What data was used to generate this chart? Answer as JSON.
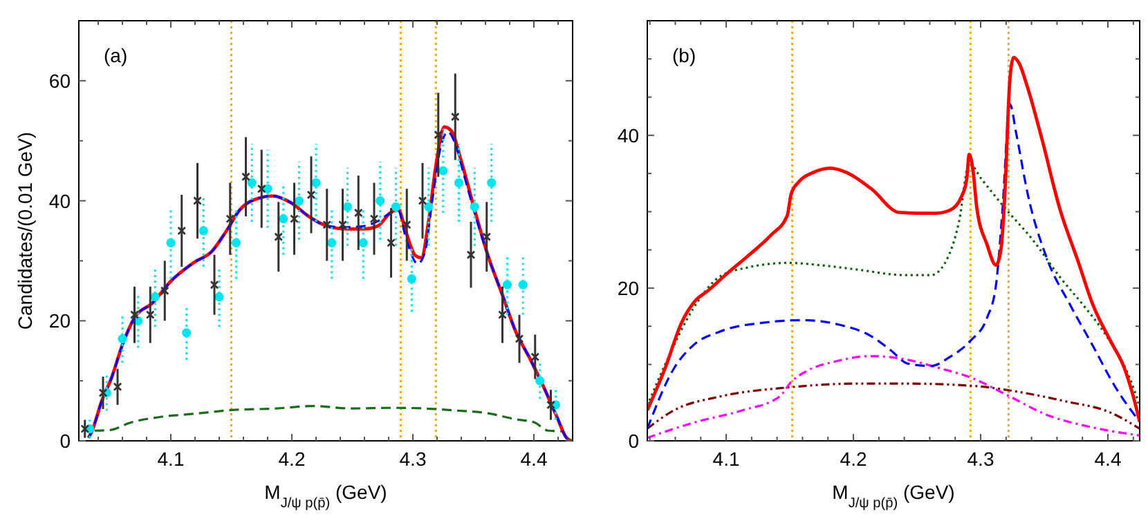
{
  "chart_data": [
    {
      "type": "line",
      "ylabel": "Candidates/(0.01 GeV)",
      "xlabel": "M$_{J/ψ p(p̄)}$ (GeV)",
      "annotations": [
        "(a)"
      ],
      "xlim": [
        4.024,
        4.432
      ],
      "ylim": [
        0,
        70
      ],
      "xticks": [
        {
          "value": 4.04,
          "label": null
        },
        {
          "value": 4.06,
          "label": null
        },
        {
          "value": 4.08,
          "label": null
        },
        4.1,
        {
          "value": 4.12,
          "label": null
        },
        {
          "value": 4.14,
          "label": null
        },
        {
          "value": 4.16,
          "label": null
        },
        {
          "value": 4.18,
          "label": null
        },
        4.2,
        {
          "value": 4.22,
          "label": null
        },
        {
          "value": 4.24,
          "label": null
        },
        {
          "value": 4.26,
          "label": null
        },
        {
          "value": 4.28,
          "label": null
        },
        4.3,
        {
          "value": 4.32,
          "label": null
        },
        {
          "value": 4.34,
          "label": null
        },
        {
          "value": 4.36,
          "label": null
        },
        {
          "value": 4.38,
          "label": null
        },
        4.4,
        {
          "value": 4.42,
          "label": null
        }
      ],
      "yticks": [
        0,
        {
          "value": 10,
          "label": null
        },
        20,
        {
          "value": 30,
          "label": null
        },
        40,
        {
          "value": 50,
          "label": null
        },
        60
      ],
      "grid": false,
      "ref_lines": [
        {
          "axis": "x",
          "value": 4.15,
          "color": "#ffa500",
          "line_style": "dotted"
        },
        {
          "axis": "x",
          "value": 4.29,
          "color": "#ffa500",
          "line_style": "dotted"
        },
        {
          "axis": "x",
          "value": 4.319,
          "color": "#ffa500",
          "line_style": "dotted"
        }
      ],
      "series": [
        {
          "color": "#1a6b1a",
          "line_style": "dashed",
          "x": [
            4.037,
            4.05,
            4.066,
            4.092,
            4.119,
            4.149,
            4.187,
            4.218,
            4.248,
            4.286,
            4.309,
            4.332,
            4.362,
            4.385,
            4.4,
            4.412,
            4.423
          ],
          "values": [
            1.7,
            1.8,
            3,
            4,
            4.5,
            5.1,
            5.4,
            5.8,
            5.4,
            5.5,
            5.4,
            5.1,
            4.6,
            3.6,
            3.1,
            1.7,
            1.6
          ]
        },
        {
          "type": "scatter",
          "color": "#00e5ee",
          "marker": "circle",
          "line_style": "dotted",
          "x": [
            4.033,
            4.047,
            4.06,
            4.073,
            4.087,
            4.1,
            4.113,
            4.127,
            4.14,
            4.154,
            4.167,
            4.18,
            4.193,
            4.206,
            4.22,
            4.233,
            4.246,
            4.259,
            4.273,
            4.286,
            4.299,
            4.313,
            4.325,
            4.338,
            4.351,
            4.365,
            4.378,
            4.391,
            4.405,
            4.418
          ],
          "values": [
            2,
            8,
            17,
            20,
            24,
            33,
            18,
            35,
            24,
            33,
            43,
            42,
            37,
            40,
            43,
            33,
            39,
            33,
            40,
            39,
            27,
            39,
            45,
            43,
            39,
            43,
            26,
            26,
            10,
            6
          ],
          "errors": [
            1.5,
            3,
            4,
            4.5,
            5,
            6,
            4.5,
            6,
            5,
            6,
            6.5,
            6.5,
            6,
            6.5,
            6.5,
            6,
            6.5,
            6,
            6.5,
            6.5,
            5.5,
            6.5,
            7,
            6.5,
            6.5,
            6.5,
            5,
            5,
            3,
            2.5
          ]
        },
        {
          "type": "scatter",
          "color": "#333333",
          "marker": "cross",
          "line_style": "solid",
          "x": [
            4.029,
            4.044,
            4.056,
            4.07,
            4.083,
            4.095,
            4.109,
            4.122,
            4.136,
            4.149,
            4.162,
            4.175,
            4.189,
            4.202,
            4.216,
            4.229,
            4.242,
            4.255,
            4.268,
            4.282,
            4.295,
            4.308,
            4.321,
            4.335,
            4.348,
            4.361,
            4.374,
            4.388,
            4.401,
            4.414
          ],
          "values": [
            2,
            8,
            9,
            21,
            21,
            25,
            35,
            40,
            26,
            37,
            44,
            42,
            34,
            37,
            41,
            36,
            36,
            38,
            37,
            33,
            36,
            40,
            51,
            54,
            31,
            34,
            21,
            17,
            14,
            6
          ],
          "errors": [
            1.5,
            2.7,
            3,
            4.7,
            4.7,
            5,
            6,
            6.3,
            5,
            6,
            6.6,
            6.5,
            5.8,
            6,
            6.4,
            6,
            6,
            6.2,
            6,
            5.8,
            6,
            6.3,
            7,
            7.2,
            5.5,
            5.8,
            4.7,
            4,
            3.7,
            2.5
          ]
        },
        {
          "color": "#ff0000",
          "line_style": "solid",
          "x": [
            4.032,
            4.035,
            4.043,
            4.051,
            4.06,
            4.07,
            4.085,
            4.1,
            4.119,
            4.134,
            4.146,
            4.157,
            4.172,
            4.184,
            4.199,
            4.214,
            4.229,
            4.245,
            4.26,
            4.271,
            4.282,
            4.288,
            4.294,
            4.302,
            4.307,
            4.313,
            4.319,
            4.326,
            4.332,
            4.34,
            4.351,
            4.362,
            4.374,
            4.385,
            4.397,
            4.408,
            4.419,
            4.427,
            4.431
          ],
          "values": [
            0.5,
            1.7,
            6.7,
            10.5,
            16,
            20.5,
            23,
            26.6,
            29.7,
            31.6,
            35,
            38.5,
            40.4,
            40.8,
            39.7,
            37.4,
            35.8,
            35.3,
            35.3,
            35.8,
            38.1,
            38.5,
            35,
            30.9,
            30.5,
            36.6,
            45.8,
            52.3,
            51.6,
            46.6,
            38.5,
            30.9,
            24.3,
            18.2,
            13.6,
            9,
            4,
            0.5,
            0
          ]
        },
        {
          "color": "#0000ff",
          "line_style": "dashed",
          "x": [
            4.032,
            4.035,
            4.043,
            4.051,
            4.06,
            4.07,
            4.085,
            4.1,
            4.119,
            4.134,
            4.146,
            4.157,
            4.172,
            4.184,
            4.199,
            4.214,
            4.229,
            4.245,
            4.26,
            4.271,
            4.282,
            4.288,
            4.294,
            4.304,
            4.31,
            4.316,
            4.323,
            4.329,
            4.335,
            4.342,
            4.351,
            4.362,
            4.374,
            4.385,
            4.397,
            4.408,
            4.419,
            4.427,
            4.431
          ],
          "values": [
            0.5,
            1.7,
            6.7,
            10.5,
            16,
            20.5,
            23,
            26.6,
            29.7,
            31.6,
            35,
            38.5,
            40.4,
            40.8,
            39.7,
            37.4,
            35.8,
            35.6,
            35.8,
            36.6,
            38,
            38.3,
            34,
            29.5,
            31.5,
            40,
            49,
            51.5,
            49.5,
            44.5,
            38,
            30.9,
            24.3,
            18.2,
            13.6,
            9,
            4,
            0.5,
            0
          ]
        }
      ]
    },
    {
      "type": "line",
      "xlabel": "M$_{J/ψ p(p̄)}$ (GeV)",
      "annotations": [
        "(b)"
      ],
      "xlim": [
        4.038,
        4.425
      ],
      "ylim": [
        0,
        55
      ],
      "xticks": [
        {
          "value": 4.04,
          "label": null
        },
        {
          "value": 4.06,
          "label": null
        },
        {
          "value": 4.08,
          "label": null
        },
        4.1,
        {
          "value": 4.12,
          "label": null
        },
        {
          "value": 4.14,
          "label": null
        },
        {
          "value": 4.16,
          "label": null
        },
        {
          "value": 4.18,
          "label": null
        },
        4.2,
        {
          "value": 4.22,
          "label": null
        },
        {
          "value": 4.24,
          "label": null
        },
        {
          "value": 4.26,
          "label": null
        },
        {
          "value": 4.28,
          "label": null
        },
        4.3,
        {
          "value": 4.32,
          "label": null
        },
        {
          "value": 4.34,
          "label": null
        },
        {
          "value": 4.36,
          "label": null
        },
        {
          "value": 4.38,
          "label": null
        },
        4.4,
        {
          "value": 4.42,
          "label": null
        }
      ],
      "yticks": [
        0,
        {
          "value": 5,
          "label": null
        },
        {
          "value": 10,
          "label": null
        },
        {
          "value": 15,
          "label": null
        },
        20,
        {
          "value": 25,
          "label": null
        },
        {
          "value": 30,
          "label": null
        },
        {
          "value": 35,
          "label": null
        },
        40,
        {
          "value": 45,
          "label": null
        },
        {
          "value": 50,
          "label": null
        }
      ],
      "grid": false,
      "ref_lines": [
        {
          "axis": "x",
          "value": 4.152,
          "color": "#ffa500",
          "line_style": "dotted"
        },
        {
          "axis": "x",
          "value": 4.292,
          "color": "#ffa500",
          "line_style": "dotted"
        },
        {
          "axis": "x",
          "value": 4.322,
          "color": "#ffa500",
          "line_style": "dotted"
        }
      ],
      "series": [
        {
          "color": "#800000",
          "line_style": "dashdotdot",
          "x": [
            4.038,
            4.059,
            4.095,
            4.149,
            4.204,
            4.24,
            4.294,
            4.33,
            4.366,
            4.402,
            4.425
          ],
          "values": [
            1.6,
            4,
            5.8,
            7,
            7.5,
            7.5,
            7.2,
            6.4,
            5.2,
            3.7,
            1.6
          ]
        },
        {
          "color": "#ff00ff",
          "line_style": "dashdot",
          "x": [
            4.038,
            4.077,
            4.113,
            4.142,
            4.151,
            4.164,
            4.186,
            4.214,
            4.24,
            4.268,
            4.292,
            4.323,
            4.352,
            4.384,
            4.425
          ],
          "values": [
            0.4,
            2.5,
            4,
            5.8,
            7.7,
            9.2,
            10.4,
            11.1,
            10.7,
            9.5,
            8.3,
            5.8,
            3.4,
            1.9,
            0.7
          ]
        },
        {
          "color": "#0000ff",
          "line_style": "dashed",
          "x": [
            4.038,
            4.059,
            4.074,
            4.095,
            4.131,
            4.16,
            4.189,
            4.214,
            4.229,
            4.243,
            4.261,
            4.276,
            4.292,
            4.305,
            4.312,
            4.317,
            4.323,
            4.328,
            4.337,
            4.352,
            4.37,
            4.388,
            4.406,
            4.425
          ],
          "values": [
            1.6,
            9.5,
            12.5,
            14.3,
            15.5,
            15.8,
            15.2,
            13.7,
            11.9,
            10.1,
            9.8,
            11,
            13.1,
            16.1,
            20.3,
            29.9,
            44.1,
            40.2,
            32.3,
            23.9,
            17.9,
            12.5,
            7,
            2.5
          ]
        },
        {
          "color": "#006400",
          "line_style": "dotted",
          "x": [
            4.038,
            4.052,
            4.074,
            4.095,
            4.117,
            4.149,
            4.174,
            4.204,
            4.24,
            4.261,
            4.272,
            4.283,
            4.291,
            4.301,
            4.319,
            4.341,
            4.362,
            4.38,
            4.399,
            4.417,
            4.425
          ],
          "values": [
            4.6,
            10,
            17.3,
            21.5,
            22.7,
            23.3,
            23,
            22.4,
            21.7,
            21.7,
            23.3,
            28.7,
            36.3,
            34.2,
            30.5,
            26.3,
            21.5,
            17.9,
            13.7,
            8.3,
            4.6
          ]
        },
        {
          "color": "#ff0000",
          "line_style": "solid",
          "x": [
            4.038,
            4.052,
            4.065,
            4.075,
            4.086,
            4.1,
            4.117,
            4.135,
            4.148,
            4.151,
            4.157,
            4.168,
            4.182,
            4.195,
            4.214,
            4.236,
            4.25,
            4.265,
            4.276,
            4.285,
            4.289,
            4.291,
            4.294,
            4.297,
            4.305,
            4.312,
            4.316,
            4.319,
            4.323,
            4.326,
            4.33,
            4.337,
            4.348,
            4.362,
            4.377,
            4.388,
            4.402,
            4.413,
            4.42,
            4.425
          ],
          "values": [
            4,
            9.5,
            15.5,
            18.2,
            19.7,
            21.8,
            24.2,
            26.9,
            29.5,
            32.3,
            33.9,
            35.1,
            35.7,
            35.1,
            33,
            29.9,
            29.8,
            29.8,
            30.2,
            32,
            34.2,
            37.5,
            35.4,
            30.5,
            25.7,
            23,
            25.1,
            32.3,
            47.4,
            50.2,
            49.5,
            46.2,
            39.6,
            30.5,
            23.3,
            17.9,
            13.1,
            9.5,
            5.8,
            2.5
          ]
        }
      ]
    }
  ]
}
